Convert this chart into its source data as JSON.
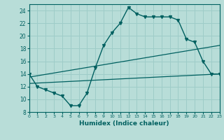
{
  "xlabel": "Humidex (Indice chaleur)",
  "bg_color": "#b8ddd8",
  "line_color": "#006060",
  "grid_color": "#9eccc8",
  "xlim": [
    0,
    23
  ],
  "ylim": [
    8,
    25
  ],
  "xticks": [
    0,
    1,
    2,
    3,
    4,
    5,
    6,
    7,
    8,
    9,
    10,
    11,
    12,
    13,
    14,
    15,
    16,
    17,
    18,
    19,
    20,
    21,
    22,
    23
  ],
  "yticks": [
    8,
    10,
    12,
    14,
    16,
    18,
    20,
    22,
    24
  ],
  "main_x": [
    0,
    1,
    2,
    3,
    4,
    5,
    6,
    7,
    8,
    9,
    10,
    11,
    12,
    13,
    14,
    15,
    16,
    17,
    18,
    19,
    20,
    21,
    22,
    23
  ],
  "main_y": [
    14,
    12,
    11.5,
    11,
    10.5,
    9,
    9,
    11,
    15,
    18.5,
    20.5,
    22,
    24.5,
    23.5,
    23,
    23,
    23,
    23,
    22.5,
    19.5,
    19,
    16,
    14,
    14
  ],
  "trend1_x": [
    0,
    23
  ],
  "trend1_y": [
    12.5,
    14
  ],
  "trend2_x": [
    0,
    23
  ],
  "trend2_y": [
    13.5,
    18.5
  ],
  "marker_x": [
    0,
    1,
    2,
    3,
    4,
    5,
    6,
    7,
    8,
    9,
    10,
    11,
    12,
    13,
    14,
    15,
    16,
    17,
    18,
    19,
    20,
    21,
    22,
    23
  ],
  "marker_y": [
    14,
    12,
    11.5,
    11,
    10.5,
    9,
    9,
    11,
    15,
    18.5,
    20.5,
    22,
    24.5,
    23.5,
    23,
    23,
    23,
    23,
    22.5,
    19.5,
    19,
    16,
    14,
    14
  ]
}
